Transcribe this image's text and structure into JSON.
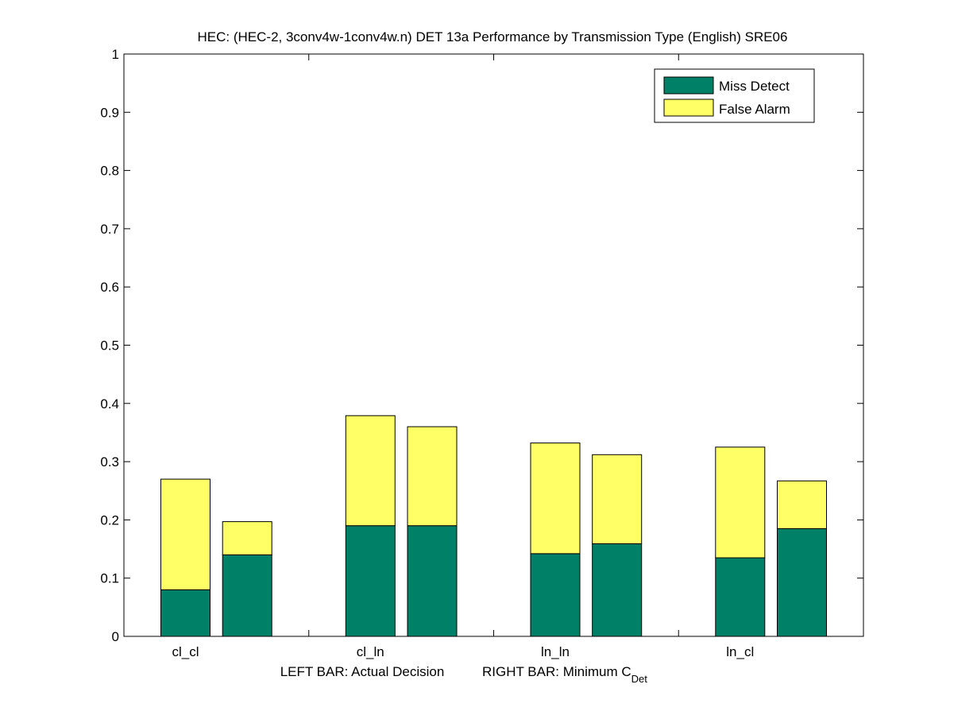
{
  "chart_data": {
    "type": "bar",
    "stacked": true,
    "title": "HEC: (HEC-2, 3conv4w-1conv4w.n) DET 13a Performance by Transmission Type (English) SRE06",
    "xlabel": {
      "left": "LEFT BAR: Actual Decision",
      "right_prefix": "RIGHT BAR: Minimum C",
      "right_subscript": "Det"
    },
    "ylabel": "",
    "ylim": [
      0,
      1
    ],
    "yticks": [
      "0",
      "0.1",
      "0.2",
      "0.3",
      "0.4",
      "0.5",
      "0.6",
      "0.7",
      "0.8",
      "0.9",
      "1"
    ],
    "categories": [
      "cl_cl",
      "cl_ln",
      "ln_ln",
      "ln_cl"
    ],
    "bars_per_category": [
      "Actual Decision",
      "Minimum C_Det"
    ],
    "series": [
      {
        "name": "Miss Detect",
        "color": "#008066",
        "actual": [
          0.08,
          0.19,
          0.142,
          0.135
        ],
        "minimum": [
          0.14,
          0.19,
          0.159,
          0.185
        ]
      },
      {
        "name": "False Alarm",
        "color": "#ffff66",
        "actual": [
          0.19,
          0.189,
          0.19,
          0.19
        ],
        "minimum": [
          0.057,
          0.17,
          0.153,
          0.082
        ]
      }
    ],
    "legend_position": "top-right",
    "grid": false
  }
}
